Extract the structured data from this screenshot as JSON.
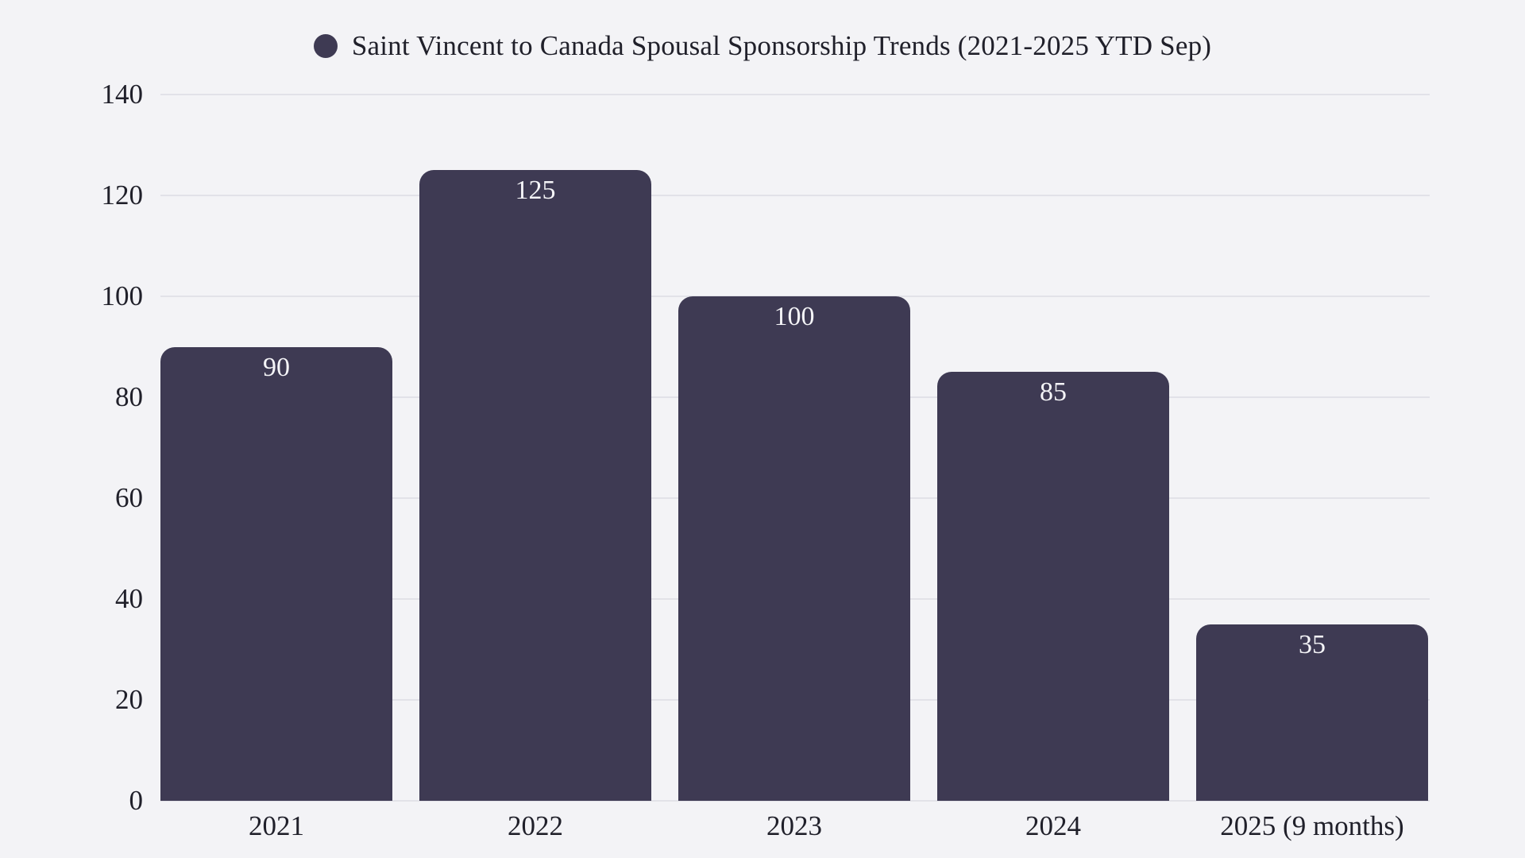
{
  "chart_data": {
    "type": "bar",
    "title": "Saint Vincent to Canada Spousal Sponsorship Trends (2021-2025 YTD Sep)",
    "categories": [
      "2021",
      "2022",
      "2023",
      "2024",
      "2025 (9 months)"
    ],
    "values": [
      90,
      125,
      100,
      85,
      35
    ],
    "yticks": [
      0,
      20,
      40,
      60,
      80,
      100,
      120,
      140
    ],
    "ylim": [
      0,
      140
    ],
    "xlabel": "",
    "ylabel": "",
    "grid": "horizontal",
    "legend_position": "top-center",
    "legend_marker": "circle",
    "data_labels": "inside-top",
    "colors": {
      "bar": "#3e3a53",
      "background": "#f3f3f6",
      "gridline": "#e2e2e8",
      "axis_text": "#20202a",
      "value_label": "#f4f4f7"
    }
  }
}
